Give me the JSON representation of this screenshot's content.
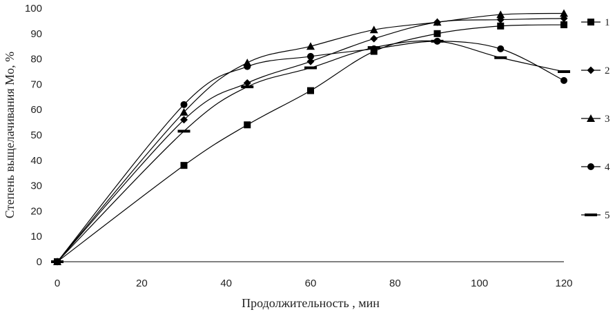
{
  "chart_data": {
    "type": "line",
    "title": "",
    "xlabel": "Продолжительность , мин",
    "ylabel": "Степень выщелачивания Mo, %",
    "xlim": [
      0,
      120
    ],
    "ylim": [
      0,
      100
    ],
    "x_ticks": [
      "0",
      "20",
      "40",
      "60",
      "80",
      "100",
      "120"
    ],
    "y_ticks": [
      "0",
      "10",
      "20",
      "30",
      "40",
      "50",
      "60",
      "70",
      "80",
      "90",
      "100"
    ],
    "grid": false,
    "legend_position": "right",
    "series": [
      {
        "name": "1",
        "marker": "square",
        "x": [
          0,
          30,
          45,
          60,
          75,
          90,
          105,
          120
        ],
        "y": [
          0,
          38,
          54,
          67.5,
          83,
          90,
          93,
          93.5
        ]
      },
      {
        "name": "2",
        "marker": "diamond",
        "x": [
          0,
          30,
          45,
          60,
          75,
          90,
          105,
          120
        ],
        "y": [
          0,
          56,
          70.5,
          79,
          88,
          94.5,
          95.5,
          96
        ]
      },
      {
        "name": "3",
        "marker": "triangle",
        "x": [
          0,
          30,
          45,
          60,
          75,
          90,
          105,
          120
        ],
        "y": [
          0,
          59,
          78.5,
          85,
          91.5,
          94.5,
          97.5,
          98
        ]
      },
      {
        "name": "4",
        "marker": "circle",
        "x": [
          0,
          30,
          45,
          60,
          75,
          90,
          105,
          120
        ],
        "y": [
          0,
          62,
          77,
          81,
          84,
          87,
          84,
          71.5
        ]
      },
      {
        "name": "5",
        "marker": "dash",
        "x": [
          0,
          30,
          45,
          60,
          75,
          90,
          105,
          120
        ],
        "y": [
          0,
          51.5,
          69,
          76.5,
          84.5,
          87,
          80.5,
          75
        ]
      }
    ]
  }
}
